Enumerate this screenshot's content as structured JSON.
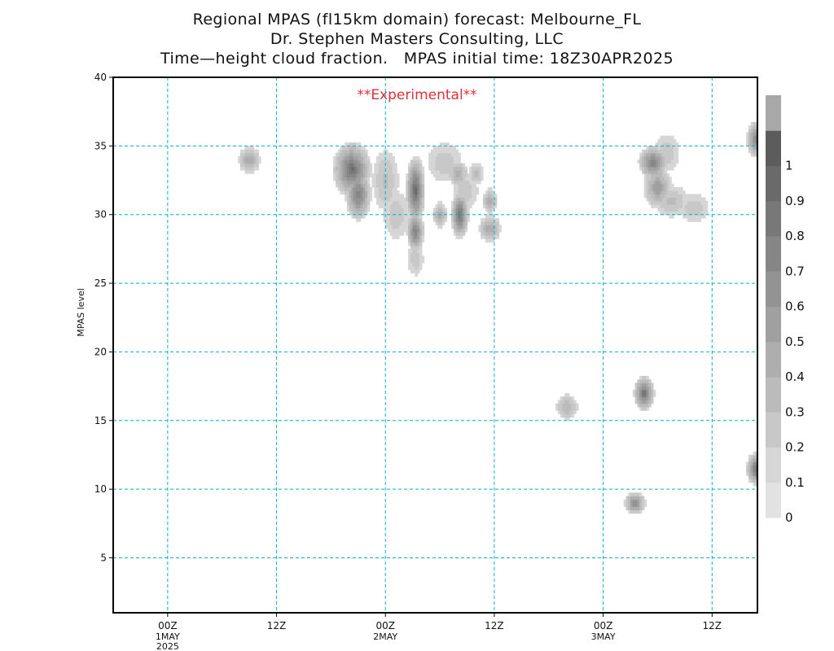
{
  "title": {
    "line1": "Regional MPAS (fl15km domain) forecast: Melbourne_FL",
    "line2": "Dr. Stephen Masters Consulting, LLC",
    "line3": "Time—height cloud fraction.   MPAS initial time: 18Z30APR2025"
  },
  "annotation": "**Experimental**",
  "chart_data": {
    "type": "heatmap",
    "ylabel": "MPAS level",
    "xlabel": "",
    "x_unit": "hours since 18Z30APR2025",
    "xlim": [
      0,
      71
    ],
    "ylim": [
      1,
      40
    ],
    "y_ticks": [
      5,
      10,
      15,
      20,
      25,
      30,
      35,
      40
    ],
    "x_ticks": [
      {
        "value": 6,
        "label": "00Z",
        "sub": [
          "1MAY",
          "2025"
        ]
      },
      {
        "value": 18,
        "label": "12Z",
        "sub": []
      },
      {
        "value": 30,
        "label": "00Z",
        "sub": [
          "2MAY"
        ]
      },
      {
        "value": 42,
        "label": "12Z",
        "sub": []
      },
      {
        "value": 54,
        "label": "00Z",
        "sub": [
          "3MAY"
        ]
      },
      {
        "value": 66,
        "label": "12Z",
        "sub": []
      }
    ],
    "grid": true,
    "colorbar": {
      "levels": [
        0,
        0.1,
        0.2,
        0.3,
        0.4,
        0.5,
        0.6,
        0.7,
        0.8,
        0.9,
        1
      ],
      "colors": [
        "#e2e2e2",
        "#d6d6d6",
        "#c8c8c8",
        "#bbbbbb",
        "#aeaeae",
        "#a0a0a0",
        "#939393",
        "#868686",
        "#787878",
        "#6a6a6a",
        "#5c5c5c",
        "#a8a8a8"
      ]
    },
    "colors": {
      "grid": "#00b4c8",
      "annotation": "#e0303a",
      "frame": "#000000"
    },
    "cloud_features": [
      {
        "t": 15,
        "lev": 34,
        "peak": 0.45,
        "rt": 1.3,
        "rl": 1.0
      },
      {
        "t": 26.3,
        "lev": 33.3,
        "peak": 0.85,
        "rt": 2.2,
        "rl": 2.1
      },
      {
        "t": 27,
        "lev": 31.5,
        "peak": 0.75,
        "rt": 1.5,
        "rl": 2.0
      },
      {
        "t": 30,
        "lev": 32.5,
        "peak": 0.25,
        "rt": 1.6,
        "rl": 2.5
      },
      {
        "t": 31.2,
        "lev": 30.0,
        "peak": 0.2,
        "rt": 1.6,
        "rl": 2.0
      },
      {
        "t": 33.3,
        "lev": 31.8,
        "peak": 0.9,
        "rt": 1.1,
        "rl": 2.6
      },
      {
        "t": 33.3,
        "lev": 28.8,
        "peak": 0.75,
        "rt": 1.0,
        "rl": 1.6
      },
      {
        "t": 33.3,
        "lev": 26.8,
        "peak": 0.2,
        "rt": 1.0,
        "rl": 1.4
      },
      {
        "t": 36.5,
        "lev": 33.8,
        "peak": 0.2,
        "rt": 2.2,
        "rl": 1.6
      },
      {
        "t": 38,
        "lev": 33,
        "peak": 0.4,
        "rt": 1.2,
        "rl": 1.0
      },
      {
        "t": 36,
        "lev": 30,
        "peak": 0.4,
        "rt": 0.9,
        "rl": 1.0
      },
      {
        "t": 38.2,
        "lev": 30,
        "peak": 0.85,
        "rt": 1.0,
        "rl": 1.8
      },
      {
        "t": 38.8,
        "lev": 31.8,
        "peak": 0.2,
        "rt": 1.6,
        "rl": 1.6
      },
      {
        "t": 40,
        "lev": 33,
        "peak": 0.3,
        "rt": 0.9,
        "rl": 0.9
      },
      {
        "t": 41.5,
        "lev": 31,
        "peak": 0.4,
        "rt": 0.9,
        "rl": 1.0
      },
      {
        "t": 41.5,
        "lev": 29,
        "peak": 0.45,
        "rt": 1.3,
        "rl": 1.0
      },
      {
        "t": 50,
        "lev": 16,
        "peak": 0.35,
        "rt": 1.3,
        "rl": 1.0
      },
      {
        "t": 58.5,
        "lev": 17,
        "peak": 0.85,
        "rt": 1.2,
        "rl": 1.3
      },
      {
        "t": 57.5,
        "lev": 9,
        "peak": 0.65,
        "rt": 1.2,
        "rl": 0.9
      },
      {
        "t": 59.5,
        "lev": 33.8,
        "peak": 0.75,
        "rt": 1.7,
        "rl": 1.3
      },
      {
        "t": 60,
        "lev": 32,
        "peak": 0.55,
        "rt": 1.6,
        "rl": 1.6
      },
      {
        "t": 61.5,
        "lev": 31,
        "peak": 0.25,
        "rt": 2.2,
        "rl": 1.3
      },
      {
        "t": 64,
        "lev": 30.5,
        "peak": 0.2,
        "rt": 1.8,
        "rl": 1.2
      },
      {
        "t": 61,
        "lev": 34.5,
        "peak": 0.2,
        "rt": 1.6,
        "rl": 1.5
      },
      {
        "t": 71,
        "lev": 35.5,
        "peak": 0.75,
        "rt": 1.3,
        "rl": 1.4
      },
      {
        "t": 71,
        "lev": 11.5,
        "peak": 0.9,
        "rt": 1.3,
        "rl": 1.3
      }
    ]
  }
}
